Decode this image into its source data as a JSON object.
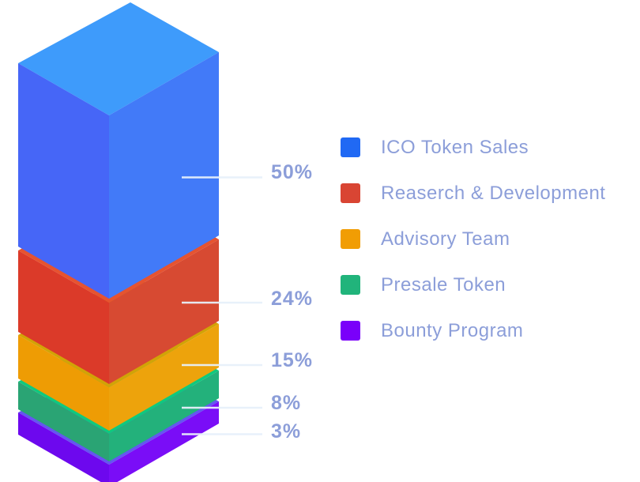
{
  "chart_data": {
    "type": "bar",
    "variant": "isometric-3d-stacked-column",
    "title": "",
    "unit": "%",
    "total": 100,
    "legend_position": "right",
    "grid": false,
    "callout_line_color": "#E7F0FA",
    "label_text_color": "#8C9ED9",
    "segments": [
      {
        "label": "ICO Token Sales",
        "value": 50,
        "pct_label": "50%",
        "colors": {
          "legend": "#2069F4",
          "top": "#3E9BFB",
          "left": "#4666F7",
          "right": "#427AF8"
        }
      },
      {
        "label": "Reaserch & Development",
        "value": 24,
        "pct_label": "24%",
        "colors": {
          "legend": "#D94533",
          "top": "#E65330",
          "left": "#DB3A29",
          "right": "#D74A32"
        }
      },
      {
        "label": "Advisory Team",
        "value": 15,
        "pct_label": "15%",
        "colors": {
          "legend": "#F19D04",
          "top": "#D2A306",
          "left": "#EE9C04",
          "right": "#EDA30C"
        }
      },
      {
        "label": "Presale Token",
        "value": 8,
        "pct_label": "8%",
        "colors": {
          "legend": "#21B47B",
          "top": "#0FC97E",
          "left": "#2AA474",
          "right": "#23B17B"
        }
      },
      {
        "label": "Bounty Program",
        "value": 3,
        "pct_label": "3%",
        "colors": {
          "legend": "#7A00FA",
          "top": "#6456F0",
          "left": "#6D08EE",
          "right": "#7A0DF7"
        }
      }
    ]
  }
}
